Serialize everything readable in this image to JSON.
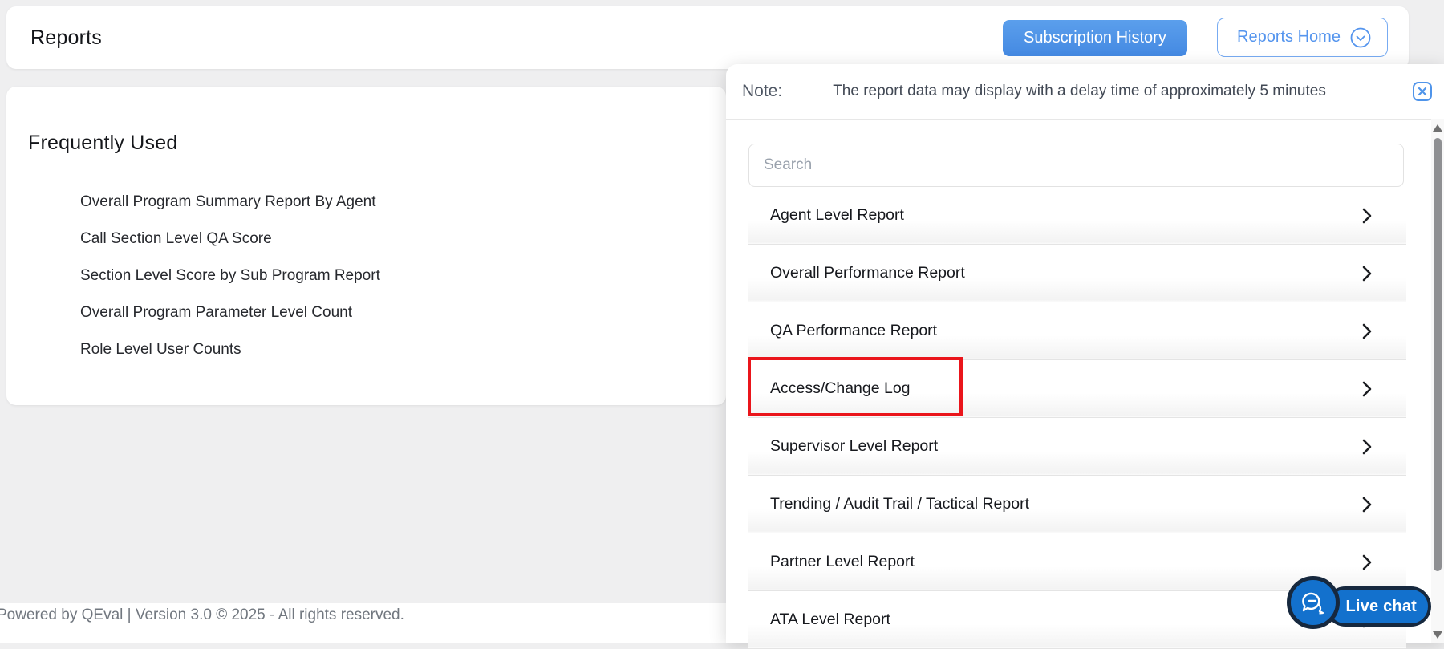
{
  "header": {
    "title": "Reports",
    "subscription_history_label": "Subscription History",
    "reports_home_label": "Reports Home"
  },
  "frequently_used": {
    "heading": "Frequently Used",
    "items": [
      "Overall Program Summary Report By Agent",
      "Call Section Level QA Score",
      "Section Level Score by Sub Program Report",
      "Overall Program Parameter Level Count",
      "Role Level User Counts"
    ]
  },
  "note": {
    "label": "Note:",
    "message": "The report data may display with a delay time of approximately 5 minutes"
  },
  "dropdown": {
    "search_placeholder": "Search",
    "items": [
      {
        "label": "Agent Level Report",
        "highlighted": false
      },
      {
        "label": "Overall Performance Report",
        "highlighted": false
      },
      {
        "label": "QA Performance Report",
        "highlighted": false
      },
      {
        "label": "Access/Change Log",
        "highlighted": true
      },
      {
        "label": "Supervisor Level Report",
        "highlighted": false
      },
      {
        "label": "Trending / Audit Trail / Tactical Report",
        "highlighted": false
      },
      {
        "label": "Partner Level Report",
        "highlighted": false
      },
      {
        "label": "ATA Level Report",
        "highlighted": false
      }
    ]
  },
  "live_chat": {
    "label": "Live chat"
  },
  "footer": {
    "text": "Powered by QEval | Version 3.0 © 2025 - All rights reserved."
  },
  "colors": {
    "accent_blue": "#4e94e8",
    "outline_blue": "#5595ee",
    "highlight_red": "#ea151b",
    "chat_blue": "#1371cd",
    "chat_ring": "#16283e"
  }
}
